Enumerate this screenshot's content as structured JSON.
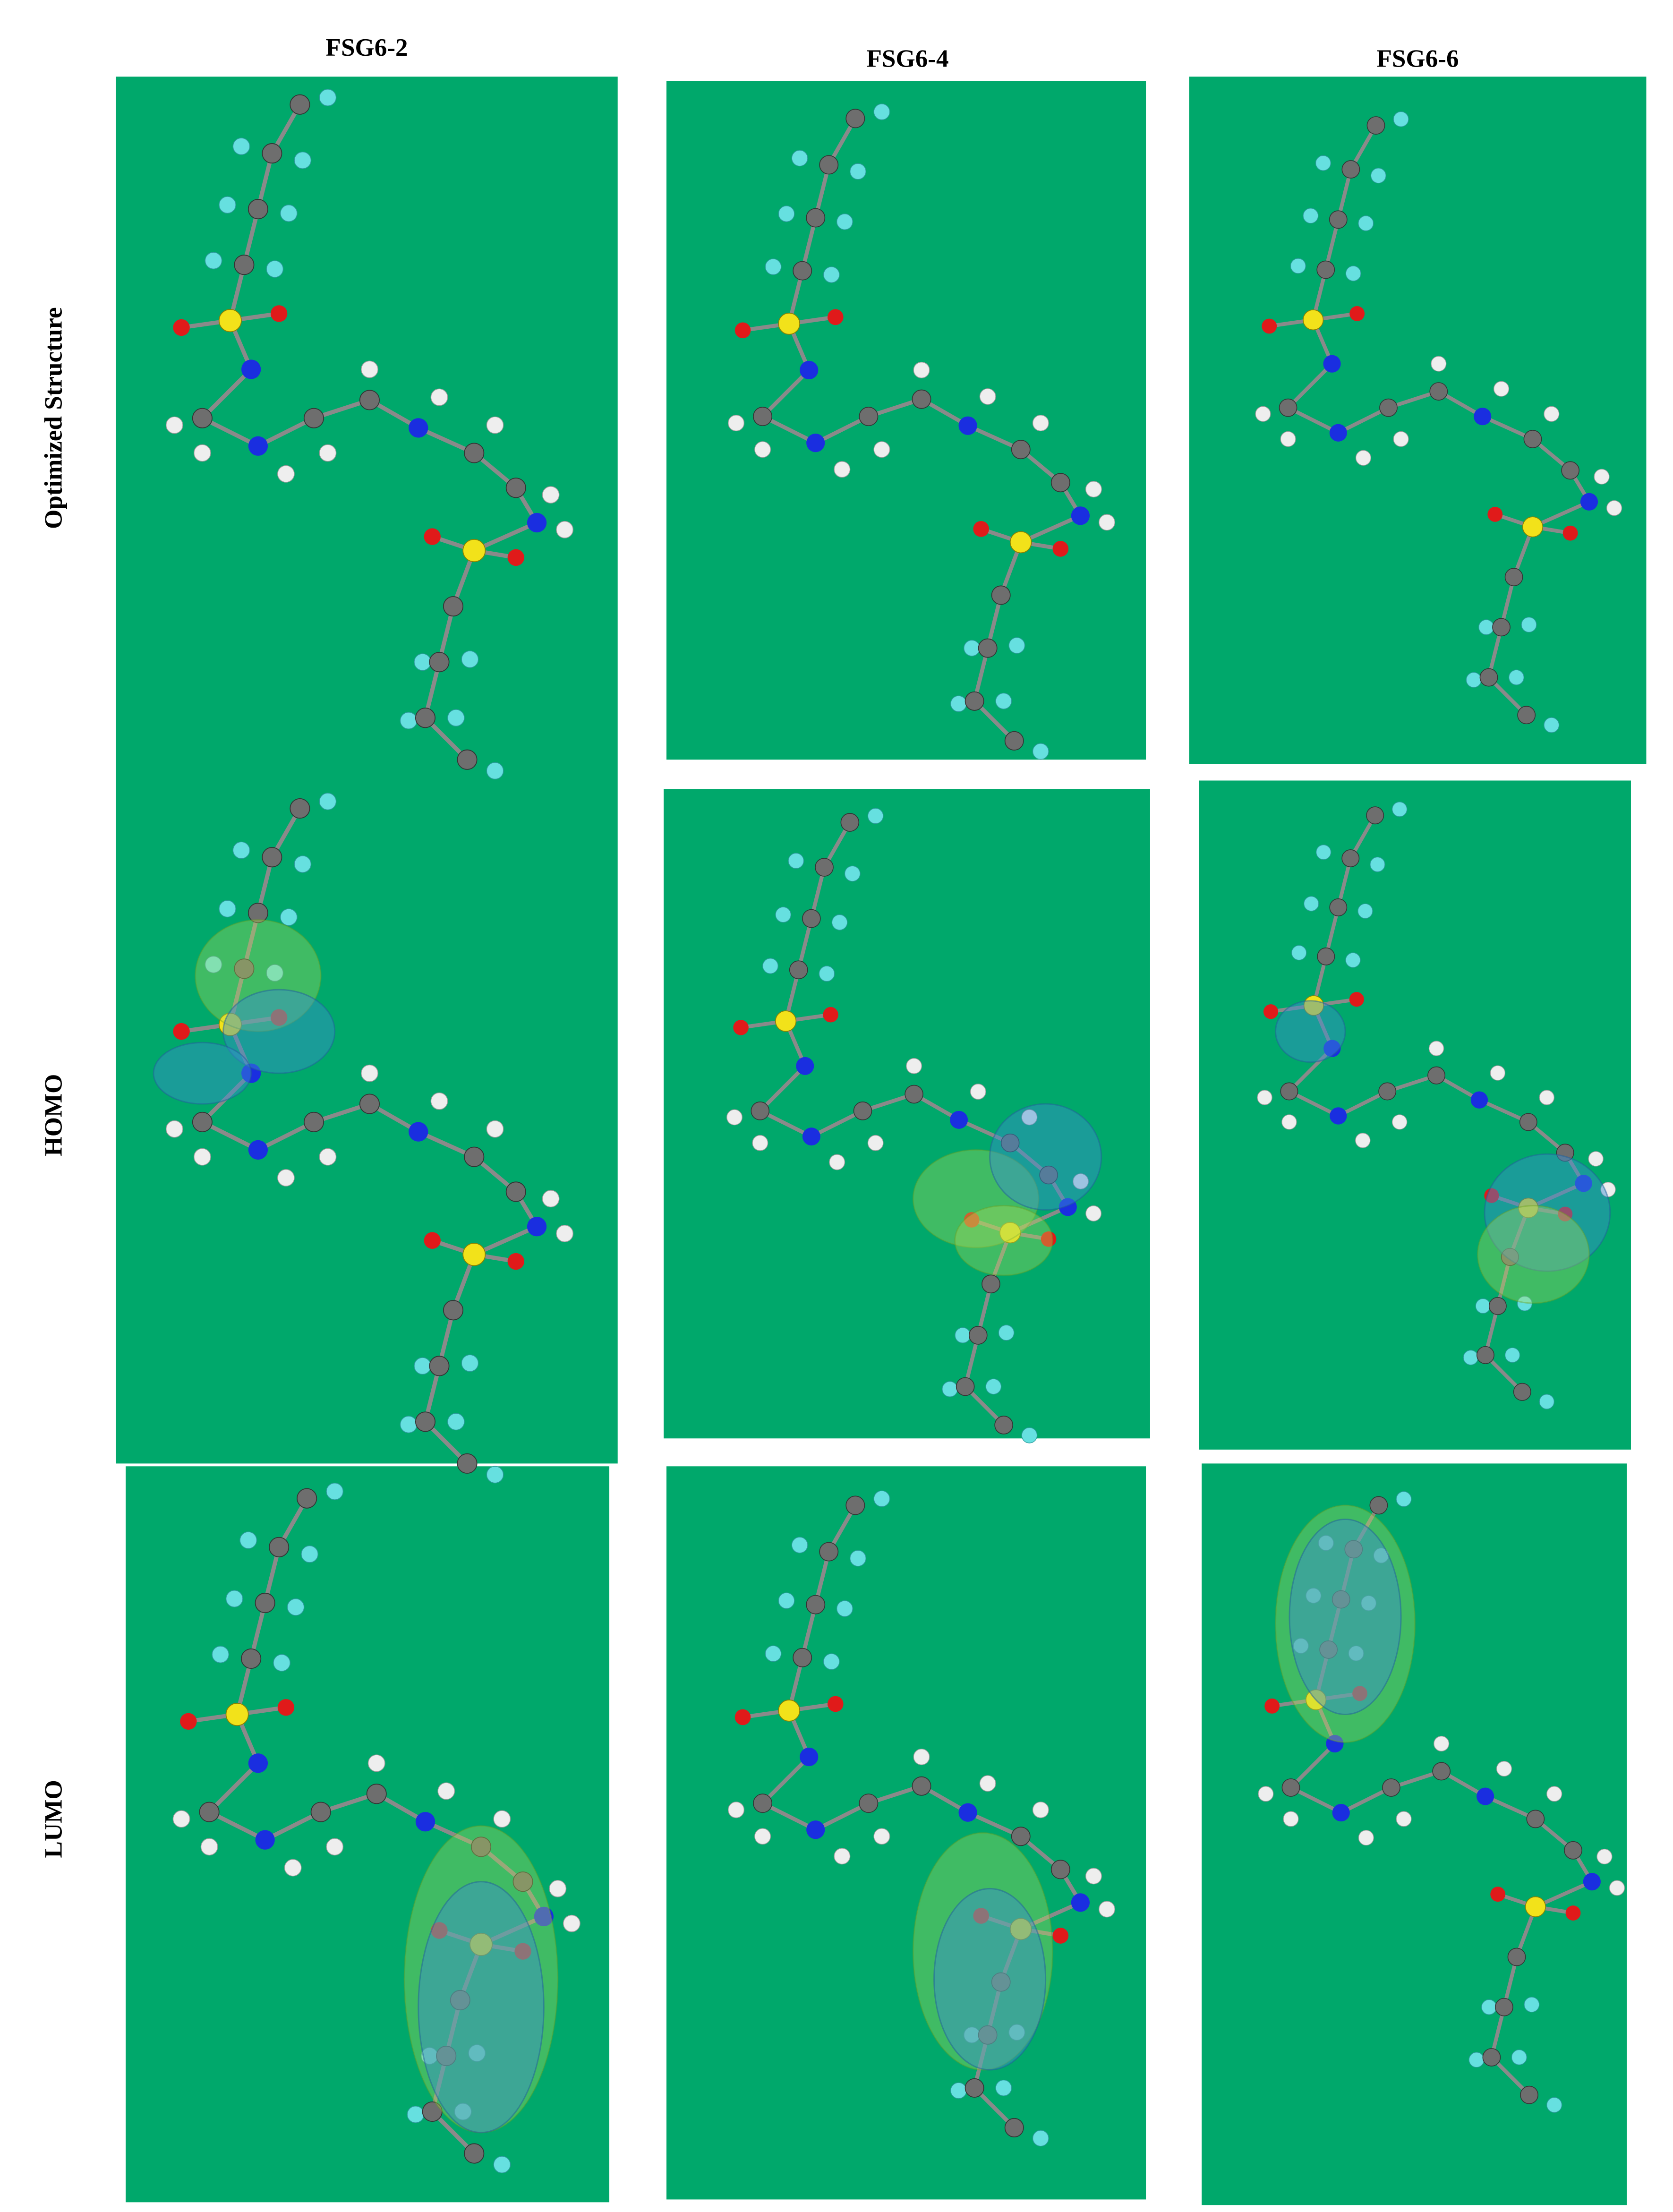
{
  "columns": [
    "FSG6-2",
    "FSG6-4",
    "FSG6-6"
  ],
  "rows": [
    "Optimized Structure",
    "HOMO",
    "LUMO"
  ]
}
